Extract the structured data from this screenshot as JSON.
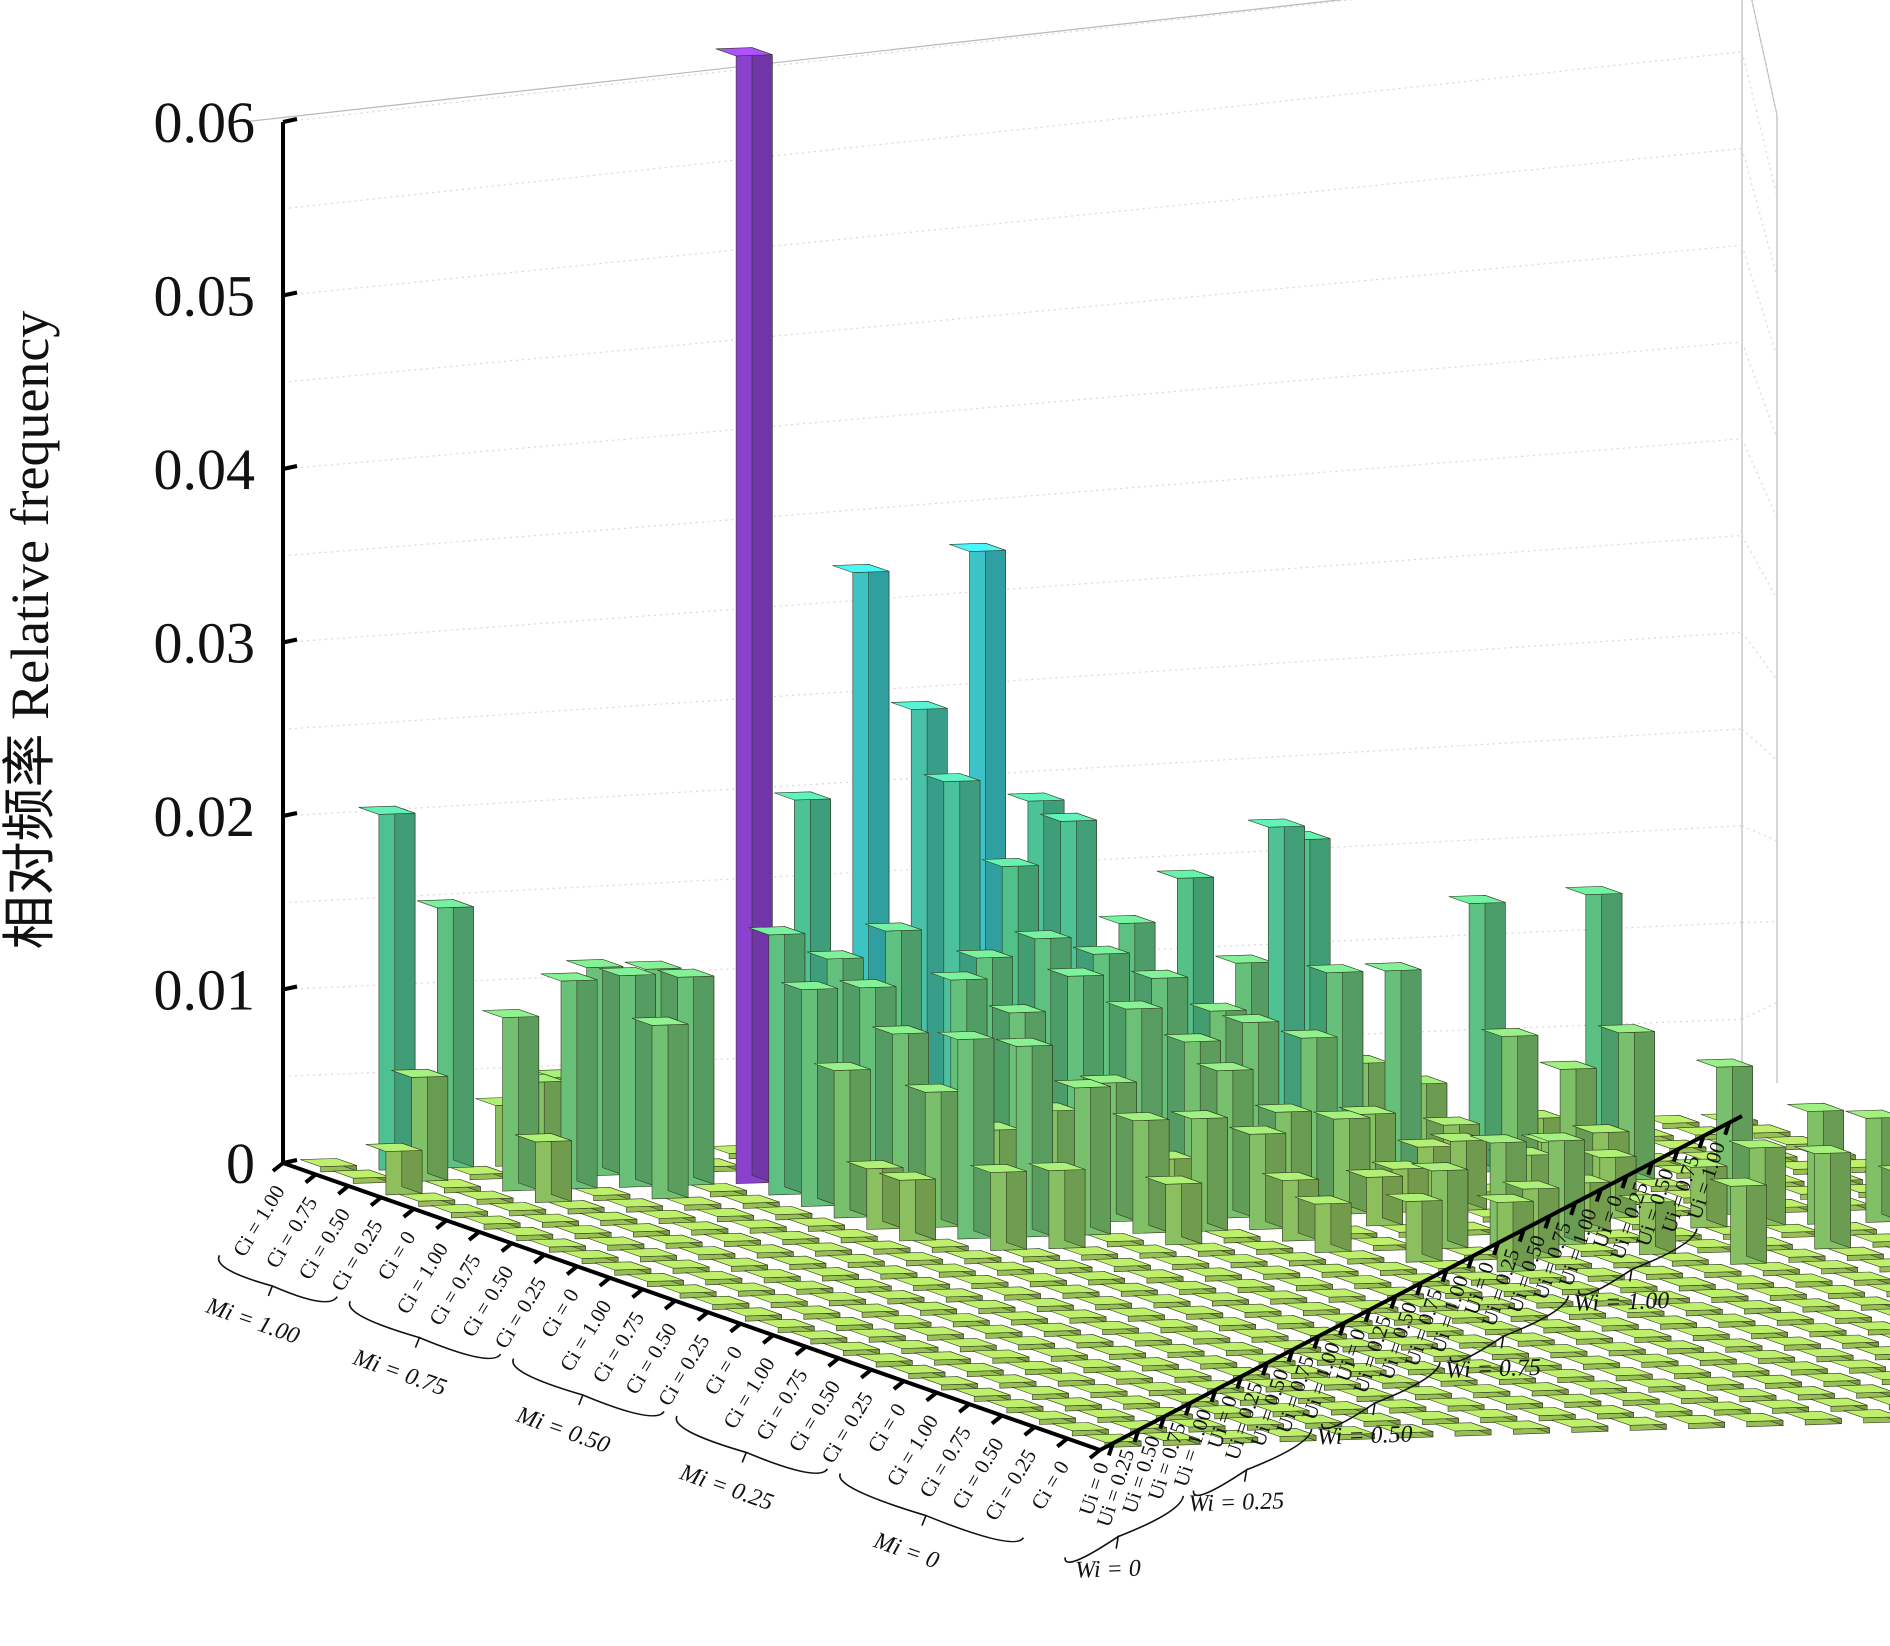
{
  "chart_data": {
    "type": "bar3d",
    "title": "",
    "ylabel": "相对频率 Relative frequency",
    "zlim": [
      0,
      0.06
    ],
    "z_ticks": [
      "0",
      "0.01",
      "0.02",
      "0.03",
      "0.04",
      "0.05",
      "0.06"
    ],
    "grid": true,
    "colors": {
      "low": "#b2de62",
      "mid": "#5fe0a0",
      "high": "#45e3e8",
      "max": "#a24bf0"
    },
    "left_axis": {
      "groups": [
        {
          "label": "Mi = 1.00",
          "items": [
            "Ci = 1.00",
            "Ci = 0.75",
            "Ci = 0.50",
            "Ci = 0.25"
          ]
        },
        {
          "label": "Mi = 0.75",
          "items": [
            "Ci = 0",
            "Ci = 1.00",
            "Ci = 0.75",
            "Ci = 0.50",
            "Ci = 0.25"
          ]
        },
        {
          "label": "Mi = 0.50",
          "items": [
            "Ci = 0",
            "Ci = 1.00",
            "Ci = 0.75",
            "Ci = 0.50",
            "Ci = 0.25"
          ]
        },
        {
          "label": "Mi = 0.25",
          "items": [
            "Ci = 0",
            "Ci = 1.00",
            "Ci = 0.75",
            "Ci = 0.50",
            "Ci = 0.25"
          ]
        },
        {
          "label": "Mi = 0",
          "items": [
            "Ci = 0",
            "Ci = 1.00",
            "Ci = 0.75",
            "Ci = 0.50",
            "Ci = 0.25",
            "Ci = 0"
          ]
        }
      ]
    },
    "right_axis": {
      "groups": [
        {
          "label": "Wi = 0",
          "items": [
            "Ui = 0",
            "Ui = 0.25",
            "Ui = 0.50",
            "Ui = 0.75",
            "Ui = 1.00"
          ]
        },
        {
          "label": "Wi = 0.25",
          "items": [
            "Ui = 0",
            "Ui = 0.25",
            "Ui = 0.50",
            "Ui = 0.75",
            "Ui = 1.00"
          ]
        },
        {
          "label": "Wi = 0.50",
          "items": [
            "Ui = 0",
            "Ui = 0.25",
            "Ui = 0.50",
            "Ui = 0.75",
            "Ui = 1.00"
          ]
        },
        {
          "label": "Wi = 0.75",
          "items": [
            "Ui = 0",
            "Ui = 0.25",
            "Ui = 0.50",
            "Ui = 0.75",
            "Ui = 1.00"
          ]
        },
        {
          "label": "Wi = 1.00",
          "items": [
            "Ui = 0",
            "Ui = 0.25",
            "Ui = 0.50",
            "Ui = 0.75",
            "Ui = 1.00"
          ]
        }
      ]
    },
    "floor_value": 0.0003,
    "bars": [
      {
        "a": 0,
        "b": 1,
        "v": 0.0205
      },
      {
        "a": 0,
        "b": 2,
        "v": 0.015
      },
      {
        "a": 0,
        "b": 3,
        "v": 0.0035
      },
      {
        "a": 0,
        "b": 4,
        "v": 0.005
      },
      {
        "a": 1,
        "b": 1,
        "v": 0.006
      },
      {
        "a": 1,
        "b": 3,
        "v": 0.0055
      },
      {
        "a": 1,
        "b": 4,
        "v": 0.012
      },
      {
        "a": 1,
        "b": 5,
        "v": 0.0118
      },
      {
        "a": 2,
        "b": 0,
        "v": 0.0025
      },
      {
        "a": 2,
        "b": 2,
        "v": 0.01
      },
      {
        "a": 2,
        "b": 3,
        "v": 0.012
      },
      {
        "a": 2,
        "b": 4,
        "v": 0.0122
      },
      {
        "a": 2,
        "b": 5,
        "v": 0.012
      },
      {
        "a": 2,
        "b": 6,
        "v": 0.065
      },
      {
        "a": 2,
        "b": 7,
        "v": 0.022
      },
      {
        "a": 2,
        "b": 8,
        "v": 0.035
      },
      {
        "a": 2,
        "b": 9,
        "v": 0.027
      },
      {
        "a": 2,
        "b": 10,
        "v": 0.036
      },
      {
        "a": 2,
        "b": 11,
        "v": 0.0215
      },
      {
        "a": 3,
        "b": 2,
        "v": 0.0035
      },
      {
        "a": 3,
        "b": 4,
        "v": 0.01
      },
      {
        "a": 3,
        "b": 6,
        "v": 0.015
      },
      {
        "a": 3,
        "b": 7,
        "v": 0.0135
      },
      {
        "a": 3,
        "b": 8,
        "v": 0.015
      },
      {
        "a": 3,
        "b": 9,
        "v": 0.0235
      },
      {
        "a": 3,
        "b": 10,
        "v": 0.0185
      },
      {
        "a": 3,
        "b": 11,
        "v": 0.021
      },
      {
        "a": 3,
        "b": 12,
        "v": 0.015
      },
      {
        "a": 3,
        "b": 13,
        "v": 0.0175
      },
      {
        "a": 3,
        "b": 14,
        "v": 0.0125
      },
      {
        "a": 3,
        "b": 15,
        "v": 0.0195
      },
      {
        "a": 3,
        "b": 16,
        "v": 0.0065
      },
      {
        "a": 3,
        "b": 17,
        "v": 0.0052
      },
      {
        "a": 3,
        "b": 18,
        "v": 0.0155
      },
      {
        "a": 3,
        "b": 19,
        "v": 0.003
      },
      {
        "a": 3,
        "b": 20,
        "v": 0.0158
      },
      {
        "a": 4,
        "b": 6,
        "v": 0.0125
      },
      {
        "a": 4,
        "b": 7,
        "v": 0.0125
      },
      {
        "a": 4,
        "b": 8,
        "v": 0.0055
      },
      {
        "a": 4,
        "b": 9,
        "v": 0.014
      },
      {
        "a": 4,
        "b": 10,
        "v": 0.015
      },
      {
        "a": 4,
        "b": 11,
        "v": 0.014
      },
      {
        "a": 4,
        "b": 12,
        "v": 0.0125
      },
      {
        "a": 4,
        "b": 13,
        "v": 0.0105
      },
      {
        "a": 4,
        "b": 14,
        "v": 0.021
      },
      {
        "a": 4,
        "b": 15,
        "v": 0.0125
      },
      {
        "a": 4,
        "b": 16,
        "v": 0.0125
      },
      {
        "a": 4,
        "b": 17,
        "v": 0.0035
      },
      {
        "a": 4,
        "b": 18,
        "v": 0.0085
      },
      {
        "a": 4,
        "b": 19,
        "v": 0.0065
      },
      {
        "a": 4,
        "b": 20,
        "v": 0.0085
      },
      {
        "a": 5,
        "b": 6,
        "v": 0.0085
      },
      {
        "a": 5,
        "b": 7,
        "v": 0.0105
      },
      {
        "a": 5,
        "b": 8,
        "v": 0.0135
      },
      {
        "a": 5,
        "b": 9,
        "v": 0.0115
      },
      {
        "a": 5,
        "b": 10,
        "v": 0.0135
      },
      {
        "a": 5,
        "b": 11,
        "v": 0.0115
      },
      {
        "a": 5,
        "b": 12,
        "v": 0.0095
      },
      {
        "a": 5,
        "b": 13,
        "v": 0.0105
      },
      {
        "a": 5,
        "b": 14,
        "v": 0.0095
      },
      {
        "a": 5,
        "b": 15,
        "v": 0.005
      },
      {
        "a": 5,
        "b": 16,
        "v": 0.003
      },
      {
        "a": 5,
        "b": 19,
        "v": 0.0035
      },
      {
        "a": 6,
        "b": 6,
        "v": 0.0035
      },
      {
        "a": 6,
        "b": 7,
        "v": 0.0078
      },
      {
        "a": 6,
        "b": 8,
        "v": 0.0055
      },
      {
        "a": 6,
        "b": 9,
        "v": 0.0065
      },
      {
        "a": 6,
        "b": 10,
        "v": 0.008
      },
      {
        "a": 6,
        "b": 11,
        "v": 0.0035
      },
      {
        "a": 6,
        "b": 12,
        "v": 0.0085
      },
      {
        "a": 6,
        "b": 13,
        "v": 0.006
      },
      {
        "a": 6,
        "b": 14,
        "v": 0.0055
      },
      {
        "a": 6,
        "b": 15,
        "v": 0.0025
      },
      {
        "a": 6,
        "b": 16,
        "v": 0.004
      },
      {
        "a": 6,
        "b": 17,
        "v": 0.003
      },
      {
        "a": 7,
        "b": 6,
        "v": 0.0035
      },
      {
        "a": 7,
        "b": 7,
        "v": 0.0115
      },
      {
        "a": 7,
        "b": 8,
        "v": 0.011
      },
      {
        "a": 7,
        "b": 9,
        "v": 0.0085
      },
      {
        "a": 7,
        "b": 10,
        "v": 0.0065
      },
      {
        "a": 7,
        "b": 11,
        "v": 0.0065
      },
      {
        "a": 7,
        "b": 12,
        "v": 0.0055
      },
      {
        "a": 7,
        "b": 14,
        "v": 0.0028
      },
      {
        "a": 7,
        "b": 17,
        "v": 0.0045
      },
      {
        "a": 7,
        "b": 18,
        "v": 0.0035
      },
      {
        "a": 7,
        "b": 20,
        "v": 0.0085
      },
      {
        "a": 8,
        "b": 7,
        "v": 0.0045
      },
      {
        "a": 8,
        "b": 8,
        "v": 0.0045
      },
      {
        "a": 8,
        "b": 10,
        "v": 0.0035
      },
      {
        "a": 8,
        "b": 12,
        "v": 0.0035
      },
      {
        "a": 8,
        "b": 16,
        "v": 0.0045
      },
      {
        "a": 8,
        "b": 17,
        "v": 0.0028
      },
      {
        "a": 8,
        "b": 19,
        "v": 0.0035
      },
      {
        "a": 8,
        "b": 20,
        "v": 0.0045
      },
      {
        "a": 8,
        "b": 21,
        "v": 0.0065
      },
      {
        "a": 8,
        "b": 22,
        "v": 0.006
      },
      {
        "a": 9,
        "b": 12,
        "v": 0.0028
      },
      {
        "a": 9,
        "b": 14,
        "v": 0.0045
      },
      {
        "a": 9,
        "b": 15,
        "v": 0.006
      },
      {
        "a": 9,
        "b": 16,
        "v": 0.006
      },
      {
        "a": 9,
        "b": 22,
        "v": 0.0035
      },
      {
        "a": 9,
        "b": 24,
        "v": 0.003
      },
      {
        "a": 10,
        "b": 13,
        "v": 0.0035
      },
      {
        "a": 10,
        "b": 15,
        "v": 0.004
      },
      {
        "a": 10,
        "b": 17,
        "v": 0.003
      },
      {
        "a": 10,
        "b": 20,
        "v": 0.0055
      },
      {
        "a": 10,
        "b": 23,
        "v": 0.0045
      },
      {
        "a": 11,
        "b": 14,
        "v": 0.004
      },
      {
        "a": 11,
        "b": 18,
        "v": 0.0045
      },
      {
        "a": 11,
        "b": 22,
        "v": 0.0035
      },
      {
        "a": 11,
        "b": 23,
        "v": 0.0035
      }
    ]
  }
}
